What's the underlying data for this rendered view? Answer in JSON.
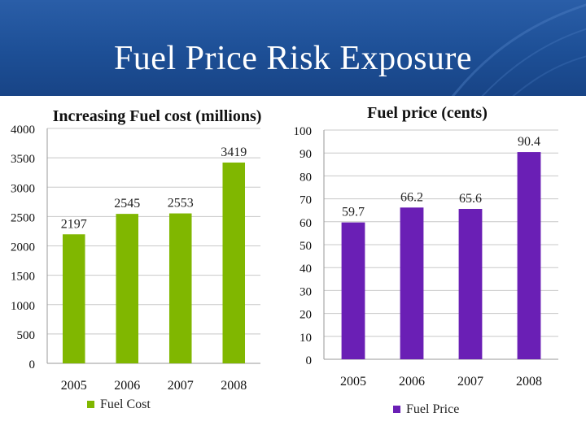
{
  "slide": {
    "title": "Fuel Price Risk Exposure"
  },
  "colors": {
    "header": "#1f529b",
    "fuel_cost": "#80b700",
    "fuel_price": "#6a1fb5"
  },
  "chart_data": [
    {
      "type": "bar",
      "title": "Increasing Fuel cost (millions)",
      "categories": [
        "2005",
        "2006",
        "2007",
        "2008"
      ],
      "series": [
        {
          "name": "Fuel Cost",
          "values": [
            2197,
            2545,
            2553,
            3419
          ],
          "color": "#80b700"
        }
      ],
      "ylim": [
        0,
        4000
      ],
      "yticks": [
        0,
        500,
        1000,
        1500,
        2000,
        2500,
        3000,
        3500,
        4000
      ],
      "grid": true,
      "legend": "bottom-left"
    },
    {
      "type": "bar",
      "title": "Fuel price (cents)",
      "categories": [
        "2005",
        "2006",
        "2007",
        "2008"
      ],
      "series": [
        {
          "name": "Fuel Price",
          "values": [
            59.7,
            66.2,
            65.6,
            90.4
          ],
          "color": "#6a1fb5"
        }
      ],
      "ylim": [
        0,
        100
      ],
      "yticks": [
        0,
        10,
        20,
        30,
        40,
        50,
        60,
        70,
        80,
        90,
        100
      ],
      "grid": true,
      "legend": "bottom"
    }
  ]
}
